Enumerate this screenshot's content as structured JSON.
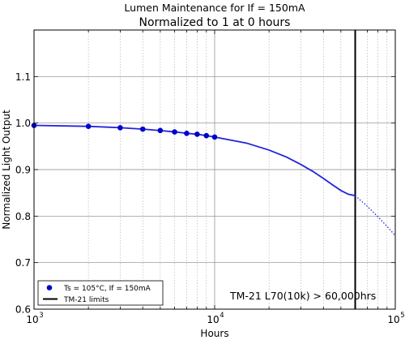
{
  "chart_data": {
    "type": "line",
    "title": "Lumen Maintenance for If = 150mA",
    "subtitle": "Normalized to 1 at 0 hours",
    "xlabel": "Hours",
    "ylabel": "Normalized Light Output",
    "xscale": "log",
    "xlim": [
      1000,
      100000
    ],
    "ylim": [
      0.6,
      1.2
    ],
    "grid": true,
    "x_ticks": [
      {
        "value": 1000,
        "base": "10",
        "exp": "3"
      },
      {
        "value": 10000,
        "base": "10",
        "exp": "4"
      },
      {
        "value": 100000,
        "base": "10",
        "exp": "5"
      }
    ],
    "y_ticks": [
      {
        "value": 0.6,
        "label": "0.6"
      },
      {
        "value": 0.7,
        "label": "0.7"
      },
      {
        "value": 0.8,
        "label": "0.8"
      },
      {
        "value": 0.9,
        "label": "0.9"
      },
      {
        "value": 1.0,
        "label": "1.0"
      },
      {
        "value": 1.1,
        "label": "1.1"
      }
    ],
    "series": [
      {
        "name": "Ts = 105°C, If = 150mA",
        "style": "markers",
        "color": "#0000cc",
        "x": [
          1000,
          2000,
          3000,
          4000,
          5000,
          6000,
          7000,
          8000,
          9000,
          10000
        ],
        "y": [
          0.995,
          0.993,
          0.99,
          0.987,
          0.984,
          0.981,
          0.978,
          0.976,
          0.973,
          0.97
        ]
      },
      {
        "style": "solid-line",
        "color": "#2222dd",
        "x": [
          1000,
          2000,
          3000,
          4000,
          5000,
          6000,
          7000,
          8000,
          9000,
          10000,
          15000,
          20000,
          25000,
          30000,
          35000,
          40000,
          45000,
          50000,
          55000,
          60000
        ],
        "y": [
          0.995,
          0.993,
          0.99,
          0.987,
          0.984,
          0.981,
          0.978,
          0.976,
          0.973,
          0.97,
          0.957,
          0.942,
          0.927,
          0.911,
          0.896,
          0.881,
          0.867,
          0.855,
          0.847,
          0.844
        ]
      },
      {
        "style": "dotted-line",
        "color": "#2222dd",
        "x": [
          60000,
          70000,
          80000,
          90000,
          100000
        ],
        "y": [
          0.844,
          0.821,
          0.799,
          0.778,
          0.758
        ]
      }
    ],
    "limit_line": {
      "name": "TM-21 limits",
      "x": 60000,
      "color": "#000000"
    },
    "annotation": "TM-21 L70(10k) > 60,000hrs",
    "legend_placement": "lower-left"
  }
}
